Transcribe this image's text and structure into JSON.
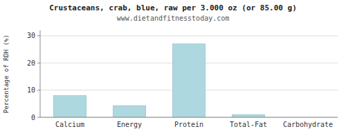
{
  "chart_data": {
    "type": "bar",
    "title": "Crustaceans, crab, blue, raw per 3.000 oz (or 85.00 g)",
    "subtitle": "www.dietandfitnesstoday.com",
    "categories": [
      "Calcium",
      "Energy",
      "Protein",
      "Total-Fat",
      "Carbohydrate"
    ],
    "values": [
      8.0,
      4.3,
      27.0,
      1.0,
      0.0
    ],
    "color": "#add8e0",
    "ylabel": "Percentage of RDH (%)",
    "ylim": [
      0,
      32
    ],
    "yticks": [
      0,
      10,
      20,
      30
    ],
    "grid": true
  }
}
